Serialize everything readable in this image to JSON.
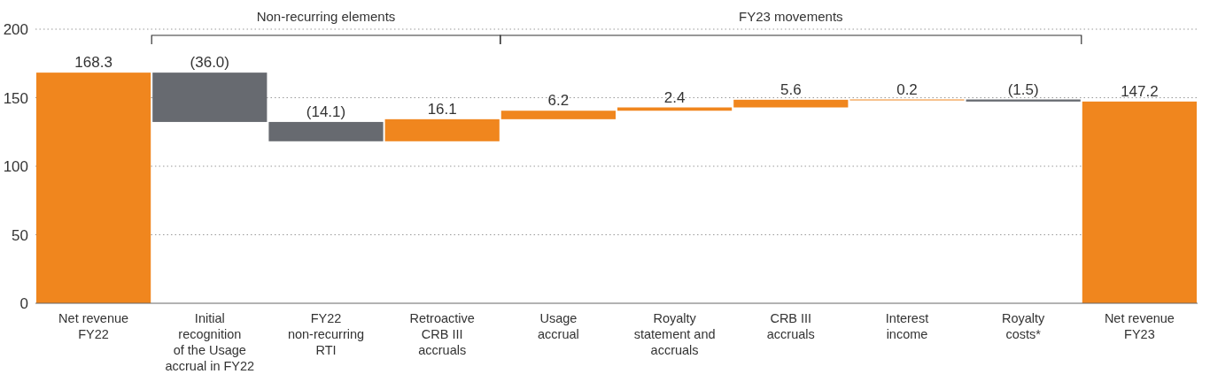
{
  "chart_data": {
    "type": "bar",
    "categories": [
      "Net revenue\nFY22",
      "Initial\nrecognition\nof the Usage\naccrual in FY22",
      "FY22\nnon-recurring\nRTI",
      "Retroactive\nCRB III\naccruals",
      "Usage\naccrual",
      "Royalty\nstatement and\naccruals",
      "CRB III\naccruals",
      "Interest\nincome",
      "Royalty\ncosts*",
      "Net revenue\nFY23"
    ],
    "values": [
      168.3,
      -36.0,
      -14.1,
      16.1,
      6.2,
      2.4,
      5.6,
      0.2,
      -1.5,
      147.2
    ],
    "base": [
      0,
      168.3,
      132.3,
      118.2,
      134.3,
      140.5,
      142.9,
      148.5,
      148.7,
      0
    ],
    "colors": [
      "#f0861e",
      "#676a70",
      "#676a70",
      "#f0861e",
      "#f0861e",
      "#f0861e",
      "#f0861e",
      "#f0861e",
      "#676a70",
      "#f0861e"
    ],
    "value_labels": [
      "168.3",
      "(36.0)",
      "(14.1)",
      "16.1",
      "6.2",
      "2.4",
      "5.6",
      "0.2",
      "(1.5)",
      "147.2"
    ],
    "ylim": [
      0,
      200
    ],
    "yticks": [
      0,
      50,
      100,
      150,
      200
    ],
    "grid": "y",
    "annotations": [
      "Non-recurring elements",
      "FY23 movements"
    ]
  }
}
